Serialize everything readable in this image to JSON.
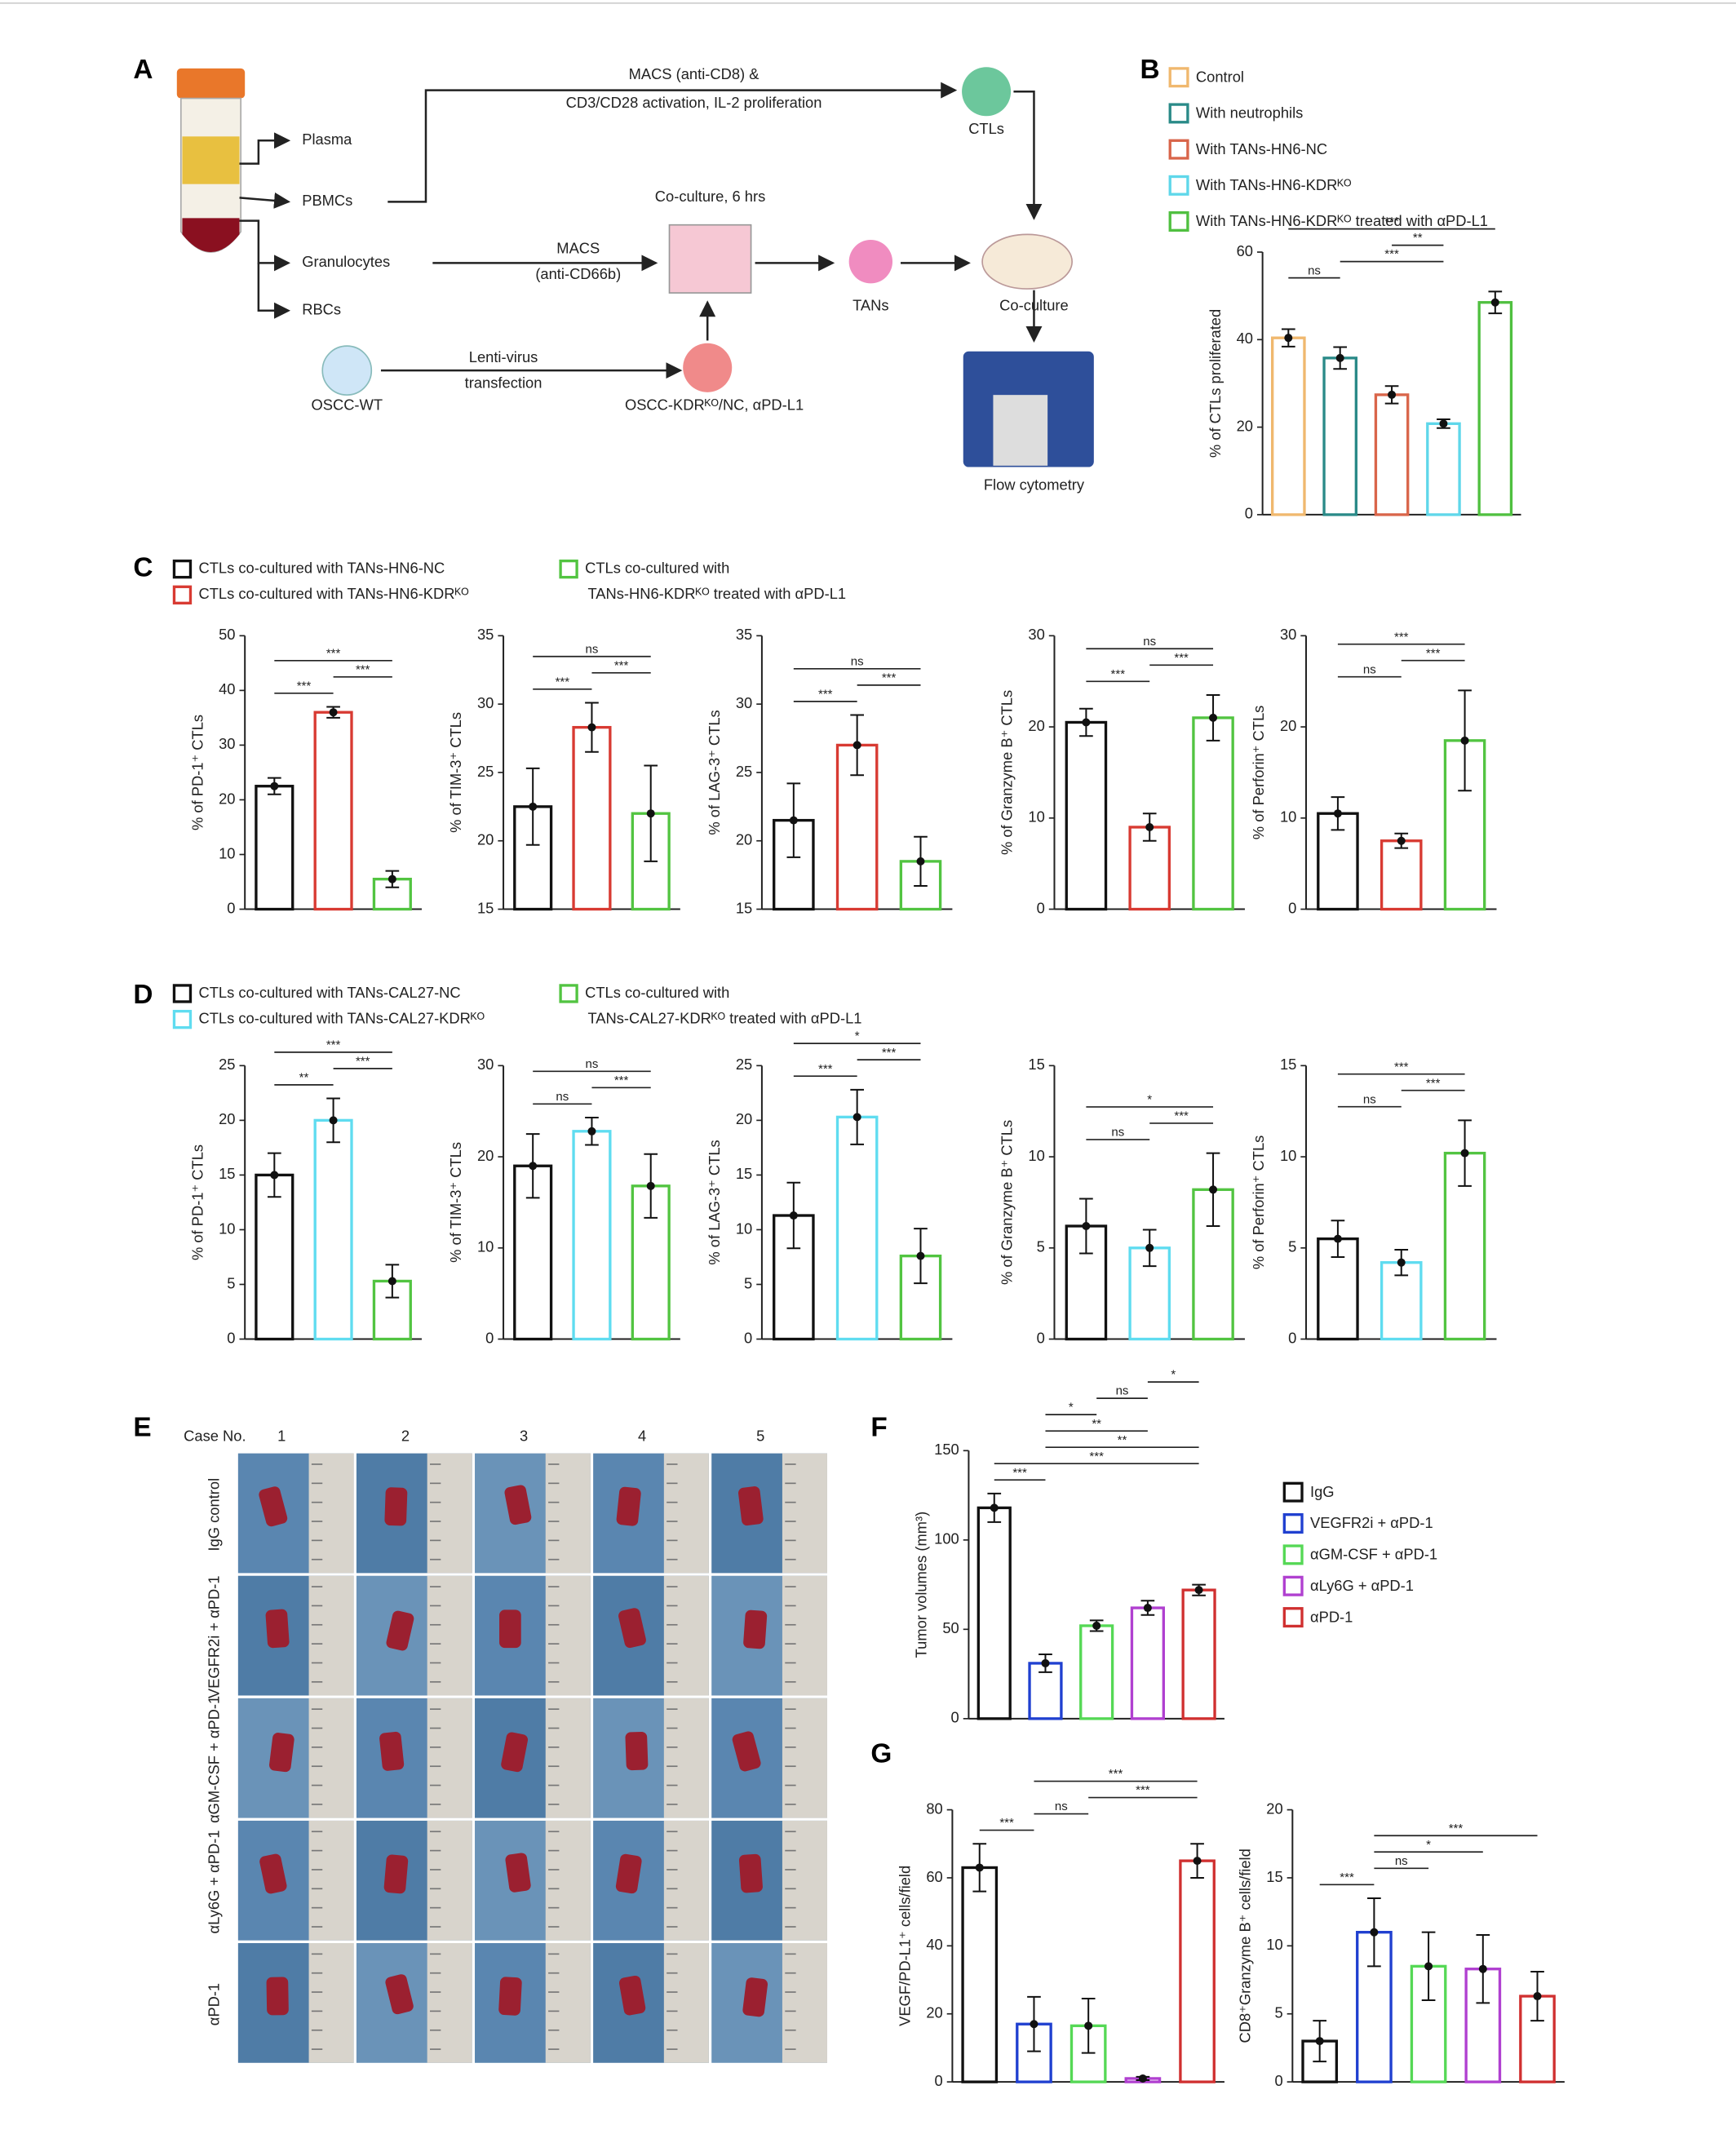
{
  "panel_labels": [
    "A",
    "B",
    "C",
    "D",
    "E",
    "F",
    "G"
  ],
  "diagram": {
    "labels": [
      "Plasma",
      "PBMCs",
      "Granulocytes",
      "RBCs",
      "MACS (anti-CD8) &",
      "CD3/CD28 activation, IL-2 proliferation",
      "CTLs",
      "Co-culture, 6 hrs",
      "MACS",
      "(anti-CD66b)",
      "TANs",
      "Co-culture",
      "Lenti-virus",
      "transfection",
      "OSCC-WT",
      "OSCC-KDRᴷᴼ/NC, αPD-L1",
      "Flow cytometry"
    ]
  },
  "legend_C": [
    {
      "lines": [
        "CTLs co-cultured with TANs-HN6-NC"
      ],
      "color": "#111111"
    },
    {
      "lines": [
        "CTLs co-cultured with TANs-HN6-KDRᴷᴼ"
      ],
      "color": "#d83a32"
    },
    {
      "lines": [
        "CTLs co-cultured with",
        "TANs-HN6-KDRᴷᴼ treated with αPD-L1"
      ],
      "color": "#52c441"
    }
  ],
  "legend_D": [
    {
      "lines": [
        "CTLs co-cultured with TANs-CAL27-NC"
      ],
      "color": "#111111"
    },
    {
      "lines": [
        "CTLs co-cultured with TANs-CAL27-KDRᴷᴼ"
      ],
      "color": "#5fdcf0"
    },
    {
      "lines": [
        "CTLs co-cultured with",
        "TANs-CAL27-KDRᴷᴼ treated with αPD-L1"
      ],
      "color": "#52c441"
    }
  ],
  "photo_grid": {
    "header": "Case No.",
    "cases": [
      "1",
      "2",
      "3",
      "4",
      "5"
    ],
    "rows": [
      "IgG control",
      "VEGFR2i + αPD-1",
      "αGM-CSF + αPD-1",
      "αLy6G + αPD-1",
      "αPD-1"
    ]
  },
  "chart_data": [
    {
      "type": "bar",
      "ylabel": "% of CTLs proliferated",
      "categories": [
        null,
        null,
        null,
        null,
        null
      ],
      "legend": [
        "Control",
        "With neutrophils",
        "With TANs-HN6-NC",
        "With TANs-HN6-KDRᴷᴼ",
        "With TANs-HN6-KDRᴷᴼ treated with αPD-L1"
      ],
      "colors": [
        "#f0b86e",
        "#2a8a88",
        "#d9654a",
        "#5fd7ea",
        "#50c040"
      ],
      "values": [
        40.4,
        35.8,
        27.4,
        20.8,
        48.5
      ],
      "errors": [
        2,
        2.5,
        2,
        1,
        2.5
      ],
      "ylim": [
        0,
        60
      ],
      "yticks": [
        0,
        20,
        40,
        60
      ],
      "significance": [
        "ns",
        "***",
        "**",
        "***"
      ]
    },
    {
      "type": "bar",
      "ylabel": "% of PD-1⁺ CTLs",
      "categories": [
        null,
        null,
        null
      ],
      "colors": [
        "#111111",
        "#d83a32",
        "#52c441"
      ],
      "values": [
        22.5,
        36,
        5.5
      ],
      "errors": [
        1.5,
        1,
        1.5
      ],
      "ylim": [
        0,
        50
      ],
      "yticks": [
        0,
        10,
        20,
        30,
        40,
        50
      ],
      "significance": [
        "***",
        "***",
        "***"
      ]
    },
    {
      "type": "bar",
      "ylabel": "% of TIM-3⁺ CTLs",
      "categories": [
        null,
        null,
        null
      ],
      "colors": [
        "#111111",
        "#d83a32",
        "#52c441"
      ],
      "values": [
        22.5,
        28.3,
        22
      ],
      "errors": [
        2.8,
        1.8,
        3.5
      ],
      "ylim": [
        15,
        35
      ],
      "yticks": [
        15,
        20,
        25,
        30,
        35
      ],
      "significance": [
        "***",
        "***",
        "ns"
      ]
    },
    {
      "type": "bar",
      "ylabel": "% of LAG-3⁺ CTLs",
      "categories": [
        null,
        null,
        null
      ],
      "colors": [
        "#111111",
        "#d83a32",
        "#52c441"
      ],
      "values": [
        21.5,
        27,
        18.5
      ],
      "errors": [
        2.7,
        2.2,
        1.8
      ],
      "ylim": [
        15,
        35
      ],
      "yticks": [
        15,
        20,
        25,
        30,
        35
      ],
      "significance": [
        "***",
        "***",
        "ns"
      ]
    },
    {
      "type": "bar",
      "ylabel": "% of Granzyme B⁺ CTLs",
      "categories": [
        null,
        null,
        null
      ],
      "colors": [
        "#111111",
        "#d83a32",
        "#52c441"
      ],
      "values": [
        20.5,
        9,
        21
      ],
      "errors": [
        1.5,
        1.5,
        2.5
      ],
      "ylim": [
        0,
        30
      ],
      "yticks": [
        0,
        10,
        20,
        30
      ],
      "significance": [
        "***",
        "***",
        "ns"
      ]
    },
    {
      "type": "bar",
      "ylabel": "% of Perforin⁺ CTLs",
      "categories": [
        null,
        null,
        null
      ],
      "colors": [
        "#111111",
        "#d83a32",
        "#52c441"
      ],
      "values": [
        10.5,
        7.5,
        18.5
      ],
      "errors": [
        1.8,
        0.8,
        5.5
      ],
      "ylim": [
        0,
        30
      ],
      "yticks": [
        0,
        10,
        20,
        30
      ],
      "significance": [
        "ns",
        "***",
        "***"
      ]
    },
    {
      "type": "bar",
      "ylabel": "% of PD-1⁺ CTLs",
      "categories": [
        null,
        null,
        null
      ],
      "colors": [
        "#111111",
        "#5fdcf0",
        "#52c441"
      ],
      "values": [
        15,
        20,
        5.3
      ],
      "errors": [
        2,
        2,
        1.5
      ],
      "ylim": [
        0,
        25
      ],
      "yticks": [
        0,
        5,
        10,
        15,
        20,
        25
      ],
      "significance": [
        "**",
        "***",
        "***"
      ]
    },
    {
      "type": "bar",
      "ylabel": "% of TIM-3⁺ CTLs",
      "categories": [
        null,
        null,
        null
      ],
      "colors": [
        "#111111",
        "#5fdcf0",
        "#52c441"
      ],
      "values": [
        19,
        22.8,
        16.8
      ],
      "errors": [
        3.5,
        1.5,
        3.5
      ],
      "ylim": [
        0,
        30
      ],
      "yticks": [
        0,
        10,
        20,
        30
      ],
      "significance": [
        "ns",
        "***",
        "ns"
      ]
    },
    {
      "type": "bar",
      "ylabel": "% of LAG-3⁺ CTLs",
      "categories": [
        null,
        null,
        null
      ],
      "colors": [
        "#111111",
        "#5fdcf0",
        "#52c441"
      ],
      "values": [
        11.3,
        20.3,
        7.6
      ],
      "errors": [
        3,
        2.5,
        2.5
      ],
      "ylim": [
        0,
        25
      ],
      "yticks": [
        0,
        5,
        10,
        15,
        20,
        25
      ],
      "significance": [
        "***",
        "***",
        "*"
      ]
    },
    {
      "type": "bar",
      "ylabel": "% of Granzyme B⁺ CTLs",
      "categories": [
        null,
        null,
        null
      ],
      "colors": [
        "#111111",
        "#5fdcf0",
        "#52c441"
      ],
      "values": [
        6.2,
        5,
        8.2
      ],
      "errors": [
        1.5,
        1,
        2
      ],
      "ylim": [
        0,
        15
      ],
      "yticks": [
        0,
        5,
        10,
        15
      ],
      "significance": [
        "ns",
        "***",
        "*"
      ]
    },
    {
      "type": "bar",
      "ylabel": "% of Perforin⁺ CTLs",
      "categories": [
        null,
        null,
        null
      ],
      "colors": [
        "#111111",
        "#5fdcf0",
        "#52c441"
      ],
      "values": [
        5.5,
        4.2,
        10.2
      ],
      "errors": [
        1,
        0.7,
        1.8
      ],
      "ylim": [
        0,
        15
      ],
      "yticks": [
        0,
        5,
        10,
        15
      ],
      "significance": [
        "ns",
        "***",
        "***"
      ]
    },
    {
      "type": "bar",
      "ylabel": "Tumor volumes (mm³)",
      "categories": [
        null,
        null,
        null,
        null,
        null
      ],
      "legend": [
        "IgG",
        "VEGFR2i + αPD-1",
        "αGM-CSF + αPD-1",
        "αLy6G + αPD-1",
        "αPD-1"
      ],
      "colors": [
        "#111111",
        "#2040d0",
        "#55d855",
        "#b040d0",
        "#d03030"
      ],
      "values": [
        118,
        31,
        52,
        62,
        72
      ],
      "errors": [
        8,
        5,
        3,
        4,
        3
      ],
      "ylim": [
        0,
        150
      ],
      "yticks": [
        0,
        50,
        100,
        150
      ],
      "significance": [
        "***",
        "***",
        "**",
        "**",
        "*",
        "ns",
        "*"
      ]
    },
    {
      "type": "bar",
      "ylabel": "VEGF/PD-L1⁺ cells/field",
      "categories": [
        null,
        null,
        null,
        null,
        null
      ],
      "colors": [
        "#111111",
        "#2040d0",
        "#55d855",
        "#b040d0",
        "#d03030"
      ],
      "values": [
        63,
        17,
        16.5,
        1,
        65
      ],
      "errors": [
        7,
        8,
        8,
        0.5,
        5
      ],
      "ylim": [
        0,
        80
      ],
      "yticks": [
        0,
        20,
        40,
        60,
        80
      ],
      "significance": [
        "***",
        "ns",
        "***",
        "***"
      ]
    },
    {
      "type": "bar",
      "ylabel": "CD8⁺Granzyme B⁺ cells/field",
      "categories": [
        null,
        null,
        null,
        null,
        null
      ],
      "colors": [
        "#111111",
        "#2040d0",
        "#55d855",
        "#b040d0",
        "#d03030"
      ],
      "values": [
        3,
        11,
        8.5,
        8.3,
        6.3
      ],
      "errors": [
        1.5,
        2.5,
        2.5,
        2.5,
        1.8
      ],
      "ylim": [
        0,
        20
      ],
      "yticks": [
        0,
        5,
        10,
        15,
        20
      ],
      "significance": [
        "***",
        "ns",
        "*",
        "***"
      ]
    }
  ]
}
